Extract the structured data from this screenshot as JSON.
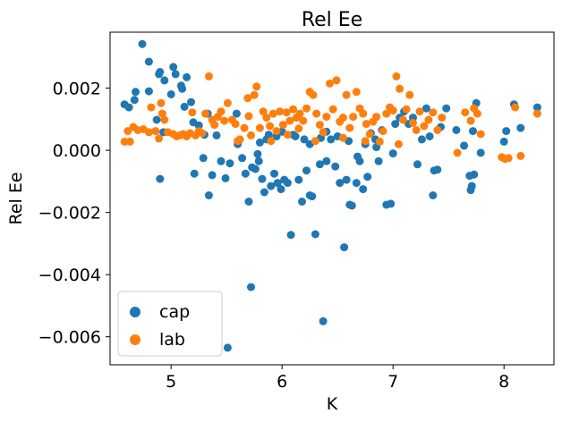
{
  "chart_data": {
    "type": "scatter",
    "title": "Rel Ee",
    "xlabel": "K",
    "ylabel": "Rel Ee",
    "xlim": [
      4.45,
      8.45
    ],
    "ylim": [
      -0.0069,
      0.0038
    ],
    "xticks": [
      5,
      6,
      7,
      8
    ],
    "xtick_labels": [
      "5",
      "6",
      "7",
      "8"
    ],
    "yticks": [
      -0.006,
      -0.004,
      -0.002,
      0.0,
      0.002
    ],
    "ytick_labels": [
      "−0.006",
      "−0.004",
      "−0.002",
      "0.000",
      "0.002"
    ],
    "grid": false,
    "legend": "lower-left",
    "series": [
      {
        "name": "cap",
        "color": "#1f77b4",
        "points": [
          [
            4.58,
            0.00148
          ],
          [
            4.62,
            0.00138
          ],
          [
            4.67,
            0.00162
          ],
          [
            4.68,
            0.00188
          ],
          [
            4.74,
            0.00342
          ],
          [
            4.8,
            0.00285
          ],
          [
            4.8,
            0.0019
          ],
          [
            4.87,
            0.00098
          ],
          [
            4.89,
            0.00245
          ],
          [
            4.9,
            0.00252
          ],
          [
            4.9,
            -0.00092
          ],
          [
            4.93,
            0.00058
          ],
          [
            4.94,
            0.00225
          ],
          [
            5.02,
            0.00268
          ],
          [
            5.04,
            0.00245
          ],
          [
            5.09,
            0.00208
          ],
          [
            5.1,
            0.00198
          ],
          [
            5.14,
            0.00235
          ],
          [
            5.18,
            0.00155
          ],
          [
            5.21,
            -0.00075
          ],
          [
            5.25,
            0.0008
          ],
          [
            5.29,
            -0.00025
          ],
          [
            5.33,
            0.00118
          ],
          [
            5.34,
            -0.00145
          ],
          [
            5.37,
            -0.0008
          ],
          [
            5.41,
            0.00048
          ],
          [
            5.45,
            -0.00035
          ],
          [
            5.49,
            -0.0009
          ],
          [
            5.51,
            -0.00635
          ],
          [
            5.53,
            -0.00042
          ],
          [
            5.59,
            0.00118
          ],
          [
            5.64,
            -0.00025
          ],
          [
            5.67,
            -0.00075
          ],
          [
            5.7,
            -0.00165
          ],
          [
            5.72,
            -0.0044
          ],
          [
            5.73,
            -0.00055
          ],
          [
            5.76,
            -0.0006
          ],
          [
            5.79,
            -0.00035
          ],
          [
            5.82,
            -0.00092
          ],
          [
            5.84,
            -0.00135
          ],
          [
            5.86,
            0.00035
          ],
          [
            5.9,
            -0.00115
          ],
          [
            5.93,
            -0.00075
          ],
          [
            5.96,
            -0.00105
          ],
          [
            5.99,
            -0.00125
          ],
          [
            6.02,
            -0.00095
          ],
          [
            6.05,
            -0.00105
          ],
          [
            6.08,
            -0.00272
          ],
          [
            6.12,
            0.00045
          ],
          [
            6.15,
            -0.00095
          ],
          [
            6.18,
            -0.00165
          ],
          [
            6.22,
            -0.00065
          ],
          [
            6.25,
            -0.00145
          ],
          [
            6.27,
            -0.00148
          ],
          [
            6.3,
            -0.0027
          ],
          [
            6.34,
            -0.00045
          ],
          [
            6.37,
            -0.0055
          ],
          [
            6.4,
            -0.00035
          ],
          [
            6.44,
            0.00035
          ],
          [
            6.48,
            -0.00052
          ],
          [
            6.52,
            -0.00105
          ],
          [
            6.56,
            -0.00312
          ],
          [
            6.58,
            -0.00095
          ],
          [
            6.61,
            -0.00175
          ],
          [
            6.63,
            -0.00178
          ],
          [
            6.67,
            -0.00105
          ],
          [
            6.7,
            -0.00035
          ],
          [
            6.73,
            -0.00125
          ],
          [
            6.77,
            -0.00085
          ],
          [
            6.8,
            0.00055
          ],
          [
            6.84,
            0.00035
          ],
          [
            6.87,
            -0.00035
          ],
          [
            6.9,
            0.00065
          ],
          [
            6.94,
            -0.00175
          ],
          [
            6.98,
            -0.00172
          ],
          [
            7.02,
            0.00085
          ],
          [
            7.06,
            0.00105
          ],
          [
            7.1,
            0.00125
          ],
          [
            7.14,
            0.00085
          ],
          [
            7.18,
            0.00105
          ],
          [
            7.22,
            -0.00045
          ],
          [
            7.26,
            0.00035
          ],
          [
            7.3,
            0.00135
          ],
          [
            7.33,
            0.00045
          ],
          [
            7.36,
            -0.00145
          ],
          [
            7.37,
            -0.00065
          ],
          [
            7.4,
            -0.00062
          ],
          [
            7.43,
            0.00075
          ],
          [
            7.48,
            0.00135
          ],
          [
            7.57,
            0.00065
          ],
          [
            7.64,
            0.00015
          ],
          [
            7.69,
            -0.00082
          ],
          [
            7.7,
            -0.00128
          ],
          [
            7.71,
            -0.00115
          ],
          [
            7.72,
            0.00062
          ],
          [
            7.73,
            -0.00078
          ],
          [
            7.75,
            0.00152
          ],
          [
            7.79,
            -8e-05
          ],
          [
            8.0,
            0.00028
          ],
          [
            8.02,
            0.00062
          ],
          [
            8.09,
            0.00148
          ],
          [
            8.15,
            0.00072
          ],
          [
            8.3,
            0.00138
          ],
          [
            5.95,
            0.00045
          ],
          [
            6.0,
            0.0006
          ],
          [
            6.35,
            0.0004
          ],
          [
            6.5,
            0.00045
          ],
          [
            6.2,
            0.00035
          ],
          [
            5.88,
            0.0005
          ],
          [
            6.6,
            0.0003
          ],
          [
            6.1,
            0.0005
          ],
          [
            5.8,
            0.00025
          ],
          [
            6.4,
            0.0006
          ],
          [
            6.75,
            0.0002
          ],
          [
            5.78,
            -0.00012
          ],
          [
            6.68,
            -0.0002
          ],
          [
            6.85,
            0.0001
          ],
          [
            7.0,
            -0.0001
          ],
          [
            6.25,
            0.0002
          ],
          [
            5.6,
            0.0002
          ],
          [
            5.3,
            0.0005
          ],
          [
            5.2,
            0.0009
          ],
          [
            5.12,
            0.0014
          ],
          [
            5.0,
            0.0018
          ]
        ]
      },
      {
        "name": "lab",
        "color": "#ff7f0e",
        "points": [
          [
            4.58,
            0.00028
          ],
          [
            4.61,
            0.00062
          ],
          [
            4.63,
            0.00028
          ],
          [
            4.66,
            0.00075
          ],
          [
            4.7,
            0.00065
          ],
          [
            4.75,
            0.00068
          ],
          [
            4.8,
            0.00058
          ],
          [
            4.82,
            0.00138
          ],
          [
            4.86,
            0.00062
          ],
          [
            4.89,
            0.00038
          ],
          [
            4.91,
            0.00152
          ],
          [
            4.92,
            0.00118
          ],
          [
            4.94,
            0.00098
          ],
          [
            4.97,
            0.00058
          ],
          [
            5.02,
            0.00052
          ],
          [
            5.05,
            0.00045
          ],
          [
            5.08,
            0.00048
          ],
          [
            5.11,
            0.00052
          ],
          [
            5.14,
            0.00045
          ],
          [
            5.17,
            0.00055
          ],
          [
            5.19,
            0.00122
          ],
          [
            5.22,
            0.00048
          ],
          [
            5.25,
            0.00062
          ],
          [
            5.28,
            0.00055
          ],
          [
            5.31,
            0.00118
          ],
          [
            5.34,
            0.00238
          ],
          [
            5.37,
            0.00098
          ],
          [
            5.39,
            0.00082
          ],
          [
            5.42,
            0.00108
          ],
          [
            5.45,
            0.00125
          ],
          [
            5.48,
            0.00095
          ],
          [
            5.51,
            0.00152
          ],
          [
            5.55,
            0.00098
          ],
          [
            5.58,
            0.00085
          ],
          [
            5.62,
            0.00035
          ],
          [
            5.66,
            0.00072
          ],
          [
            5.69,
            0.00168
          ],
          [
            5.72,
            0.00048
          ],
          [
            5.75,
            0.00178
          ],
          [
            5.77,
            0.00205
          ],
          [
            5.8,
            0.00072
          ],
          [
            5.83,
            0.00125
          ],
          [
            5.86,
            0.00105
          ],
          [
            5.89,
            0.00078
          ],
          [
            5.92,
            0.00118
          ],
          [
            5.95,
            0.00062
          ],
          [
            5.98,
            0.00125
          ],
          [
            6.01,
            0.00082
          ],
          [
            6.04,
            0.00122
          ],
          [
            6.07,
            0.00095
          ],
          [
            6.1,
            0.00132
          ],
          [
            6.13,
            0.00105
          ],
          [
            6.16,
            0.00118
          ],
          [
            6.19,
            0.00095
          ],
          [
            6.22,
            0.00135
          ],
          [
            6.25,
            0.00188
          ],
          [
            6.28,
            0.00178
          ],
          [
            6.31,
            0.00118
          ],
          [
            6.34,
            0.00082
          ],
          [
            6.37,
            0.00058
          ],
          [
            6.4,
            0.00108
          ],
          [
            6.43,
            0.00215
          ],
          [
            6.46,
            0.00132
          ],
          [
            6.49,
            0.00225
          ],
          [
            6.52,
            0.00092
          ],
          [
            6.55,
            0.00105
          ],
          [
            6.58,
            0.00178
          ],
          [
            6.61,
            0.00072
          ],
          [
            6.64,
            0.00108
          ],
          [
            6.67,
            0.00188
          ],
          [
            6.7,
            0.00135
          ],
          [
            6.73,
            0.00118
          ],
          [
            6.76,
            0.00085
          ],
          [
            6.79,
            0.00052
          ],
          [
            6.82,
            0.00092
          ],
          [
            6.85,
            0.00108
          ],
          [
            6.88,
            0.00028
          ],
          [
            6.91,
            0.00062
          ],
          [
            6.94,
            0.00118
          ],
          [
            6.97,
            0.00138
          ],
          [
            7.0,
            0.00128
          ],
          [
            7.03,
            0.00238
          ],
          [
            7.06,
            0.00198
          ],
          [
            7.09,
            0.00098
          ],
          [
            7.12,
            0.00132
          ],
          [
            7.15,
            0.00178
          ],
          [
            7.18,
            0.00088
          ],
          [
            7.21,
            0.00065
          ],
          [
            7.24,
            0.00125
          ],
          [
            7.28,
            0.00078
          ],
          [
            7.32,
            0.00098
          ],
          [
            7.36,
            0.00122
          ],
          [
            7.4,
            0.00065
          ],
          [
            7.44,
            0.00105
          ],
          [
            7.58,
            -8e-05
          ],
          [
            7.65,
            0.00122
          ],
          [
            7.7,
            0.00095
          ],
          [
            7.73,
            0.00135
          ],
          [
            7.76,
            0.00118
          ],
          [
            7.79,
            0.00052
          ],
          [
            7.98,
            -0.00022
          ],
          [
            8.01,
            -0.00028
          ],
          [
            8.04,
            -0.00025
          ],
          [
            8.1,
            0.00138
          ],
          [
            8.15,
            -0.00018
          ],
          [
            8.3,
            0.00118
          ],
          [
            5.6,
            0.0003
          ],
          [
            5.9,
            0.0003
          ],
          [
            6.05,
            0.0005
          ],
          [
            6.3,
            0.0003
          ],
          [
            6.55,
            0.0004
          ],
          [
            6.75,
            0.0003
          ],
          [
            7.05,
            0.0002
          ],
          [
            5.7,
            0.0011
          ],
          [
            6.15,
            0.0007
          ]
        ]
      }
    ]
  }
}
